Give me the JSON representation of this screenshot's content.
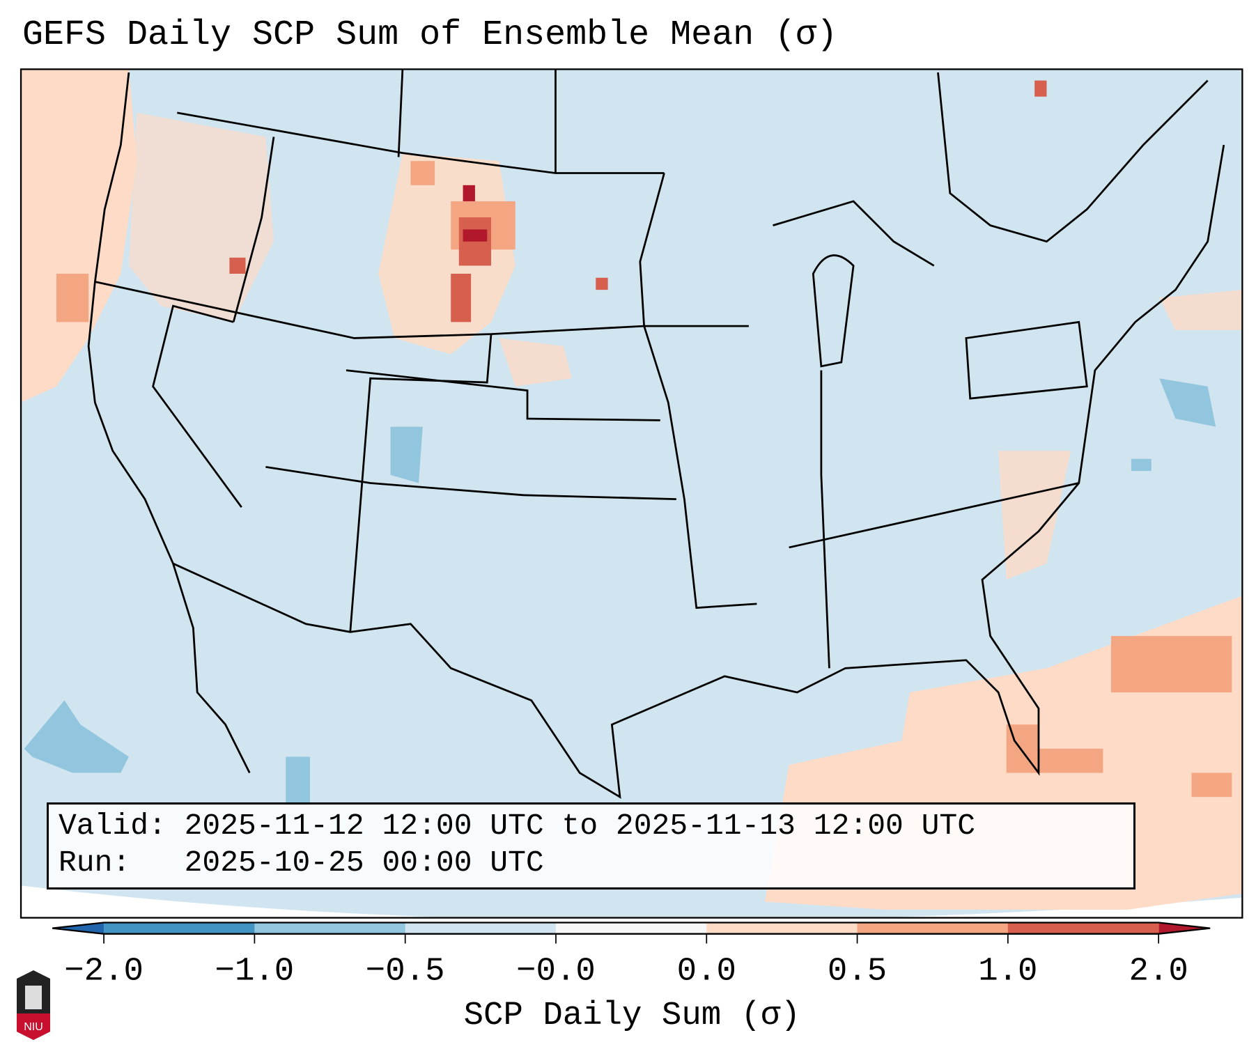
{
  "chart_data": {
    "type": "heatmap",
    "title": "GEFS Daily SCP Sum of Ensemble Mean (σ)",
    "colorbar": {
      "label": "SCP Daily Sum (σ)",
      "tick_labels": [
        "−2.0",
        "−1.0",
        "−0.5",
        "−0.0",
        "0.0",
        "0.5",
        "1.0",
        "2.0"
      ],
      "bins": [
        {
          "range": [
            -2.0,
            -1.0
          ],
          "color": "#4393c3"
        },
        {
          "range": [
            -1.0,
            -0.5
          ],
          "color": "#92c5de"
        },
        {
          "range": [
            -0.5,
            -0.0
          ],
          "color": "#d1e5f0"
        },
        {
          "range": [
            -0.0,
            0.0
          ],
          "color": "#f7f7f7"
        },
        {
          "range": [
            0.0,
            0.5
          ],
          "color": "#fddbc7"
        },
        {
          "range": [
            0.5,
            1.0
          ],
          "color": "#f4a582"
        },
        {
          "range": [
            1.0,
            2.0
          ],
          "color": "#d6604d"
        }
      ],
      "extend_min_color": "#2166ac",
      "extend_max_color": "#b2182b"
    },
    "info": {
      "valid_line": "Valid: 2025-11-12 12:00 UTC to 2025-11-13 12:00 UTC",
      "run_line": "Run:   2025-10-25 00:00 UTC"
    },
    "logo_text": "NIU"
  }
}
